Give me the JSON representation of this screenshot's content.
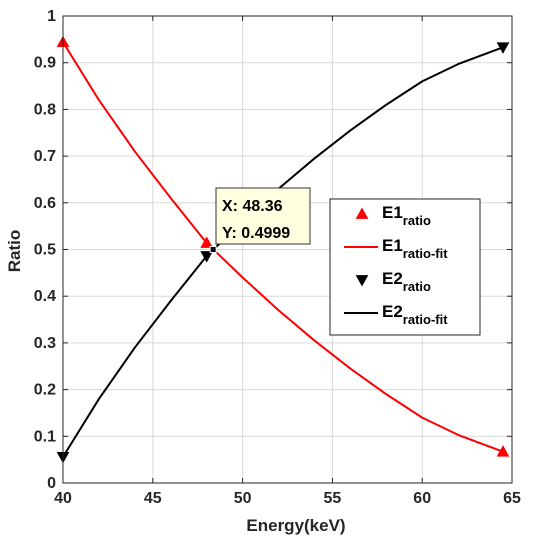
{
  "chart_data": {
    "type": "line",
    "title": "",
    "xlabel": "Energy(keV)",
    "ylabel": "Ratio",
    "xlim": [
      40,
      65
    ],
    "ylim": [
      0,
      1
    ],
    "x_ticks": [
      "40",
      "45",
      "50",
      "55",
      "60",
      "65"
    ],
    "y_ticks": [
      "0",
      "0.1",
      "0.2",
      "0.3",
      "0.4",
      "0.5",
      "0.6",
      "0.7",
      "0.8",
      "0.9",
      "1"
    ],
    "grid": true,
    "legend_position": "center-right",
    "series": [
      {
        "name": "E1",
        "name_subscript": "ratio",
        "kind": "markers",
        "marker": "triangle-up",
        "color": "#ff0000",
        "x": [
          40.0,
          48.0,
          64.5
        ],
        "y": [
          0.944,
          0.514,
          0.067
        ]
      },
      {
        "name": "E1",
        "name_subscript": "ratio-fit",
        "kind": "line",
        "color": "#ff0000",
        "x": [
          40,
          42,
          44,
          46,
          48,
          50,
          52,
          54,
          56,
          58,
          60,
          62,
          64.5
        ],
        "y": [
          0.944,
          0.82,
          0.71,
          0.61,
          0.514,
          0.44,
          0.37,
          0.305,
          0.245,
          0.19,
          0.14,
          0.103,
          0.067
        ]
      },
      {
        "name": "E2",
        "name_subscript": "ratio",
        "kind": "markers",
        "marker": "triangle-down",
        "color": "#000000",
        "x": [
          40.0,
          48.0,
          64.5
        ],
        "y": [
          0.056,
          0.486,
          0.933
        ]
      },
      {
        "name": "E2",
        "name_subscript": "ratio-fit",
        "kind": "line",
        "color": "#000000",
        "x": [
          40,
          42,
          44,
          46,
          48,
          50,
          52,
          54,
          56,
          58,
          60,
          62,
          64.5
        ],
        "y": [
          0.056,
          0.18,
          0.29,
          0.39,
          0.486,
          0.56,
          0.63,
          0.695,
          0.755,
          0.81,
          0.86,
          0.897,
          0.933
        ]
      }
    ],
    "datatip": {
      "x": 48.36,
      "y": 0.4999,
      "x_text": "X: 48.36",
      "y_text": "Y: 0.4999"
    }
  },
  "colors": {
    "background": "#ffffff",
    "grid": "#d9d9d9",
    "datatip_background": "#ffffe0"
  }
}
